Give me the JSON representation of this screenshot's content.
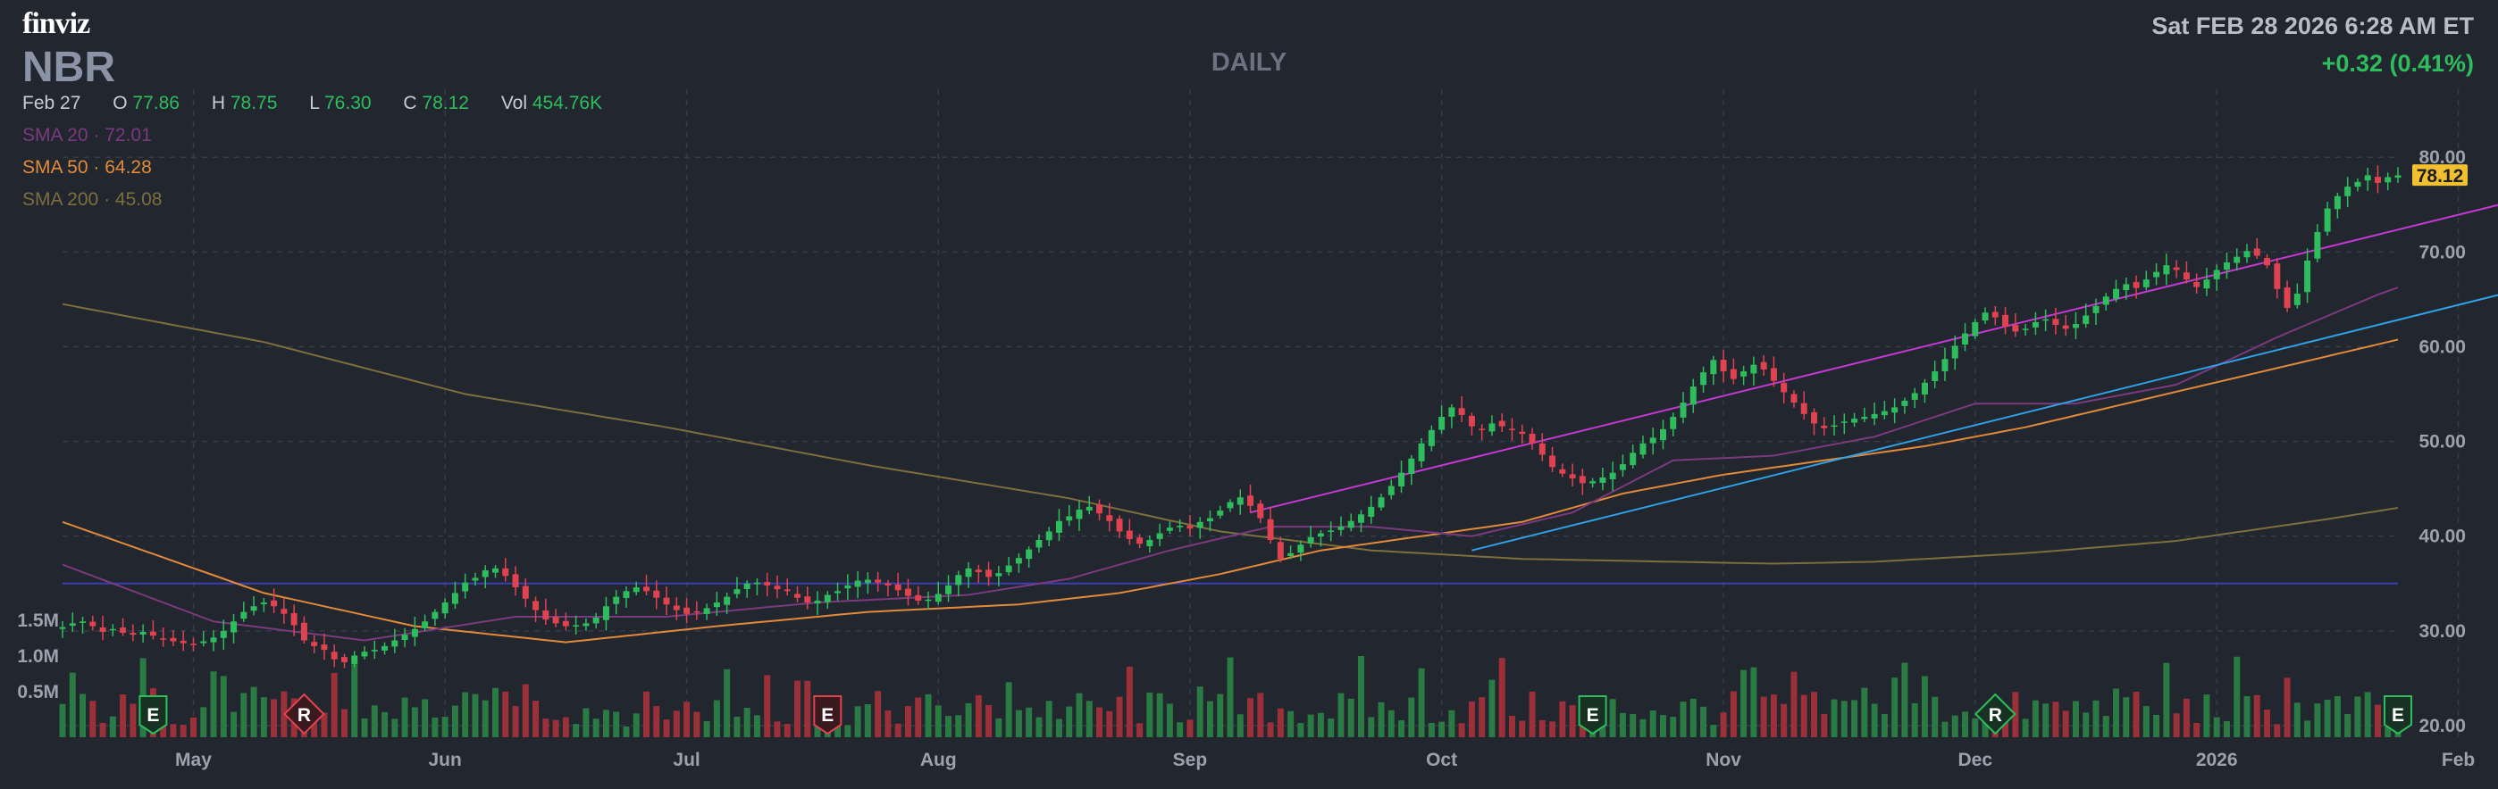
{
  "header": {
    "logo": "finviz",
    "ticker": "NBR",
    "timeframe": "DAILY",
    "datetime": "Sat FEB 28 2026 6:28 AM ET",
    "change": "+0.32 (0.41%)"
  },
  "ohlc": {
    "date": "Feb 27",
    "o_label": "O",
    "o": "77.86",
    "h_label": "H",
    "h": "78.75",
    "l_label": "L",
    "l": "76.30",
    "c_label": "C",
    "c": "78.12",
    "vol_label": "Vol",
    "vol": "454.76K"
  },
  "sma": [
    {
      "label": "SMA 20",
      "sep": "·",
      "value": "72.01",
      "color": "#7a3a7e"
    },
    {
      "label": "SMA 50",
      "sep": "·",
      "value": "64.28",
      "color": "#e38a3a"
    },
    {
      "label": "SMA 200",
      "sep": "·",
      "value": "45.08",
      "color": "#7d6e3e"
    }
  ],
  "colors": {
    "up": "#2ebd5c",
    "down": "#e0434f",
    "vol_up": "#2a7a44",
    "vol_down": "#9c3038",
    "grid": "#353b47",
    "trend_upper": "#c638d4",
    "trend_lower": "#2fa2e6",
    "support": "#3b3fb6",
    "last_price_bg": "#f0c030"
  },
  "chart_data": {
    "type": "candlestick",
    "ylim": [
      20,
      82
    ],
    "y_ticks": [
      "80.00",
      "70.00",
      "60.00",
      "50.00",
      "40.00",
      "30.00",
      "20.00"
    ],
    "last_price": "78.12",
    "volume_ticks": [
      "1.5M",
      "1.0M",
      "0.5M"
    ],
    "x_labels": [
      "May",
      "Jun",
      "Jul",
      "Aug",
      "Sep",
      "Oct",
      "Nov",
      "Dec",
      "2026",
      "Feb"
    ],
    "events": [
      {
        "type": "E",
        "kind": "earnings",
        "bar": 9
      },
      {
        "type": "R",
        "kind": "revision",
        "bar": 24
      },
      {
        "type": "E",
        "kind": "earnings",
        "bar": 76
      },
      {
        "type": "E",
        "kind": "earnings",
        "bar": 152
      },
      {
        "type": "R",
        "kind": "revision",
        "bar": 192
      },
      {
        "type": "E",
        "kind": "earnings",
        "bar": 232
      }
    ],
    "support_line": 35,
    "trend_upper": {
      "from_bar": 118,
      "from": 42.5,
      "to_bar": 244,
      "to": 75.5
    },
    "trend_lower": {
      "from_bar": 140,
      "from": 38.5,
      "to_bar": 244,
      "to": 66
    },
    "close_series": [
      30.4,
      30.8,
      31,
      30.5,
      29.9,
      30.2,
      29.8,
      29.6,
      29.9,
      29.5,
      29.2,
      28.9,
      28.7,
      28.5,
      28.9,
      29.3,
      30,
      31,
      32,
      32.6,
      33,
      32.6,
      31.8,
      30.6,
      29,
      28.4,
      28,
      27,
      26.7,
      27.4,
      27.8,
      28,
      28.4,
      29,
      29.6,
      30.2,
      31,
      32,
      33,
      34,
      35.1,
      35.6,
      36.4,
      36.6,
      35.8,
      34.6,
      33.4,
      32.2,
      31.2,
      30.8,
      30.5,
      30.6,
      30.8,
      31.4,
      32.6,
      33.6,
      34.2,
      34.6,
      34.2,
      33.5,
      32.8,
      32.2,
      31.8,
      32,
      32.4,
      33,
      33.6,
      34.4,
      35,
      35.1,
      34.8,
      34.4,
      34.2,
      33.5,
      33,
      33.2,
      33.8,
      34.2,
      34.8,
      35.3,
      35.4,
      35.1,
      34.8,
      34.3,
      33.7,
      33.2,
      33.3,
      33.9,
      34.8,
      35.9,
      36.6,
      36.2,
      35.7,
      36.1,
      36.9,
      37.7,
      38.6,
      39.6,
      40.5,
      41.6,
      42.1,
      42.8,
      43.1,
      42.4,
      41.6,
      40.5,
      39.7,
      39.2,
      39.6,
      40.3,
      40.9,
      41.1,
      40.8,
      41.5,
      41.9,
      42.7,
      43.6,
      44.1,
      43.2,
      41.9,
      39.6,
      37.6,
      38.2,
      39.1,
      39.9,
      40.3,
      40.6,
      41,
      41.6,
      42.3,
      43.1,
      44.1,
      45.3,
      46.7,
      48.2,
      49.8,
      51.2,
      52.6,
      53.6,
      52.8,
      51.6,
      51.3,
      51.9,
      51.6,
      51.2,
      50.8,
      49.8,
      48.6,
      47.3,
      46.6,
      46.1,
      45.6,
      45.8,
      46.2,
      46.7,
      47.6,
      48.8,
      49.8,
      50.4,
      51.3,
      52.6,
      54.1,
      55.8,
      57.3,
      58.6,
      57.4,
      56.6,
      57.4,
      58.1,
      57.6,
      56.4,
      55.2,
      54.1,
      52.9,
      51.9,
      51.4,
      51.7,
      52.1,
      52.4,
      52.6,
      52.9,
      53.2,
      53.6,
      54.3,
      55.1,
      56.2,
      57.4,
      58.7,
      60.1,
      61.4,
      62.6,
      63.6,
      63.1,
      62.1,
      61.6,
      61.9,
      62.6,
      62.9,
      62.3,
      61.9,
      62.4,
      63.3,
      64.3,
      65.3,
      66.1,
      66.6,
      66.2,
      67.1,
      67.9,
      68.6,
      68.1,
      67.1,
      66.3,
      67.1,
      68.1,
      68.9,
      69.5,
      70.1,
      69.6,
      68.6,
      66.1,
      64.1,
      65.6,
      69.1,
      72.1,
      74.6,
      75.9,
      76.9,
      77.4,
      78.1,
      77.3,
      77.9,
      78.1
    ],
    "sma20_anchors": [
      [
        0,
        37
      ],
      [
        15,
        31
      ],
      [
        30,
        29
      ],
      [
        45,
        31.5
      ],
      [
        60,
        31.5
      ],
      [
        75,
        33
      ],
      [
        90,
        33.8
      ],
      [
        100,
        35.5
      ],
      [
        110,
        38.5
      ],
      [
        120,
        41
      ],
      [
        130,
        41
      ],
      [
        140,
        40
      ],
      [
        150,
        42.5
      ],
      [
        160,
        48
      ],
      [
        170,
        48.5
      ],
      [
        180,
        50.5
      ],
      [
        190,
        54
      ],
      [
        200,
        54
      ],
      [
        210,
        56
      ],
      [
        220,
        61
      ],
      [
        230,
        65.5
      ],
      [
        238,
        68.5
      ],
      [
        244,
        72
      ]
    ],
    "sma50_anchors": [
      [
        0,
        41.5
      ],
      [
        20,
        34
      ],
      [
        35,
        30.5
      ],
      [
        50,
        28.8
      ],
      [
        65,
        30.5
      ],
      [
        80,
        32
      ],
      [
        95,
        32.8
      ],
      [
        105,
        34
      ],
      [
        115,
        36
      ],
      [
        125,
        38.5
      ],
      [
        135,
        40
      ],
      [
        145,
        41.5
      ],
      [
        155,
        44.5
      ],
      [
        165,
        46.5
      ],
      [
        175,
        48
      ],
      [
        185,
        49.5
      ],
      [
        195,
        51.5
      ],
      [
        205,
        54
      ],
      [
        215,
        56.5
      ],
      [
        225,
        59
      ],
      [
        235,
        61.5
      ],
      [
        244,
        64.28
      ]
    ],
    "sma200_anchors": [
      [
        0,
        64.5
      ],
      [
        20,
        60.5
      ],
      [
        40,
        55
      ],
      [
        60,
        51.5
      ],
      [
        80,
        47.5
      ],
      [
        100,
        44
      ],
      [
        115,
        40.5
      ],
      [
        130,
        38.5
      ],
      [
        145,
        37.6
      ],
      [
        160,
        37.3
      ],
      [
        170,
        37.1
      ],
      [
        180,
        37.3
      ],
      [
        195,
        38.2
      ],
      [
        210,
        39.5
      ],
      [
        225,
        41.8
      ],
      [
        235,
        43.5
      ],
      [
        244,
        45.08
      ]
    ]
  }
}
